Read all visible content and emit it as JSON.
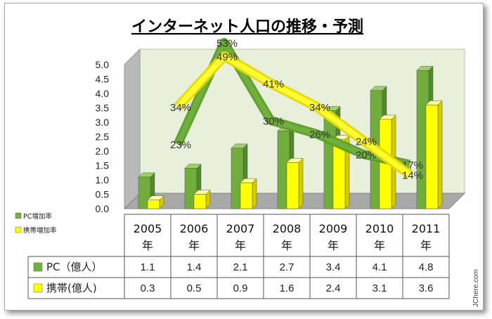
{
  "chart_data": {
    "type": "bar",
    "title": "インターネット人口の推移・予測",
    "categories": [
      "2005\n年",
      "2006\n年",
      "2007\n年",
      "2008\n年",
      "2009\n年",
      "2010\n年",
      "2011\n年"
    ],
    "ylim": [
      0,
      5
    ],
    "yticks": [
      "0.0",
      "0.5",
      "1.0",
      "1.5",
      "2.0",
      "2.5",
      "3.0",
      "3.5",
      "4.0",
      "4.5",
      "5.0"
    ],
    "series": [
      {
        "name": "PC（億人）",
        "values": [
          1.1,
          1.4,
          2.1,
          2.7,
          3.4,
          4.1,
          4.8
        ],
        "color": "#6fb33c"
      },
      {
        "name": "携帯(億人)",
        "values": [
          0.3,
          0.5,
          0.9,
          1.6,
          2.4,
          3.1,
          3.6
        ],
        "color": "#ffff00"
      }
    ],
    "rate_lines": [
      {
        "name": "PC増加率",
        "values": [
          23,
          53,
          30,
          26,
          20,
          17
        ],
        "labels": [
          "23%",
          "53%",
          "30%",
          "26%",
          "20%",
          "17%"
        ],
        "color": "#5e9a2c"
      },
      {
        "name": "携帯増加率",
        "values": [
          34,
          49,
          41,
          34,
          24,
          14
        ],
        "labels": [
          "34%",
          "49%",
          "41%",
          "34%",
          "24%",
          "14%"
        ],
        "color": "#ffff00"
      }
    ],
    "table_rows": [
      {
        "header": "PC（億人）",
        "values": [
          "1.1",
          "1.4",
          "2.1",
          "2.7",
          "3.4",
          "4.1",
          "4.8"
        ]
      },
      {
        "header": "携帯(億人)",
        "values": [
          "0.3",
          "0.5",
          "0.9",
          "1.6",
          "2.4",
          "3.1",
          "3.6"
        ]
      }
    ],
    "legend": [
      "PC増加率",
      "携帯増加率"
    ],
    "grid": false
  },
  "watermark": "JChere.com"
}
